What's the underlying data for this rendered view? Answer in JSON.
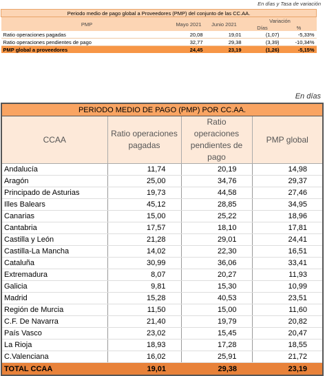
{
  "summary": {
    "note": "En días y Tasa de variación",
    "title": "Periodo medio de pago global a Proveedores (PMP) del conjunto de las CC.AA.",
    "header": {
      "label": "PMP",
      "may": "Mayo 2021",
      "june": "Junio 2021",
      "variation": "Variación",
      "days": "Días",
      "pct": "%"
    },
    "rows": [
      [
        "Ratio operaciones pagadas",
        "20,08",
        "19,01",
        "(1,07)",
        "-5,33%"
      ],
      [
        "Ratio operaciones pendientes de pago",
        "32,77",
        "29,38",
        "(3,39)",
        "-10,34%"
      ],
      [
        "PMP global a proveedores",
        "24,45",
        "23,19",
        "(1,26)",
        "-5,15%"
      ]
    ]
  },
  "table": {
    "note": "En días",
    "title": "PERIODO MEDIO DE PAGO (PMP) POR CC.AA.",
    "header": [
      "CCAA",
      "Ratio operaciones pagadas",
      "Ratio operaciones pendientes de pago",
      "PMP global"
    ],
    "rows": [
      [
        "Andalucía",
        "11,74",
        "20,19",
        "14,98"
      ],
      [
        "Aragón",
        "25,00",
        "34,76",
        "29,37"
      ],
      [
        "Principado de Asturias",
        "19,73",
        "44,58",
        "27,46"
      ],
      [
        "Illes Balears",
        "45,12",
        "28,85",
        "34,95"
      ],
      [
        "Canarias",
        "15,00",
        "25,22",
        "18,96"
      ],
      [
        "Cantabria",
        "17,57",
        "18,10",
        "17,81"
      ],
      [
        "Castilla y León",
        "21,28",
        "29,01",
        "24,41"
      ],
      [
        "Castilla-La Mancha",
        "14,02",
        "22,30",
        "16,51"
      ],
      [
        "Cataluña",
        "30,99",
        "36,06",
        "33,41"
      ],
      [
        "Extremadura",
        "8,07",
        "20,27",
        "11,93"
      ],
      [
        "Galicia",
        "9,81",
        "15,30",
        "10,99"
      ],
      [
        "Madrid",
        "15,28",
        "40,53",
        "23,51"
      ],
      [
        "Región de Murcia",
        "11,50",
        "15,00",
        "11,60"
      ],
      [
        "C.F. De Navarra",
        "21,40",
        "19,79",
        "20,82"
      ],
      [
        "País Vasco",
        "23,02",
        "15,45",
        "20,47"
      ],
      [
        "La Rioja",
        "18,93",
        "17,28",
        "18,55"
      ],
      [
        "C.Valenciana",
        "16,02",
        "25,91",
        "21,72"
      ]
    ],
    "total": [
      "TOTAL CCAA",
      "19,01",
      "29,38",
      "23,19"
    ]
  }
}
